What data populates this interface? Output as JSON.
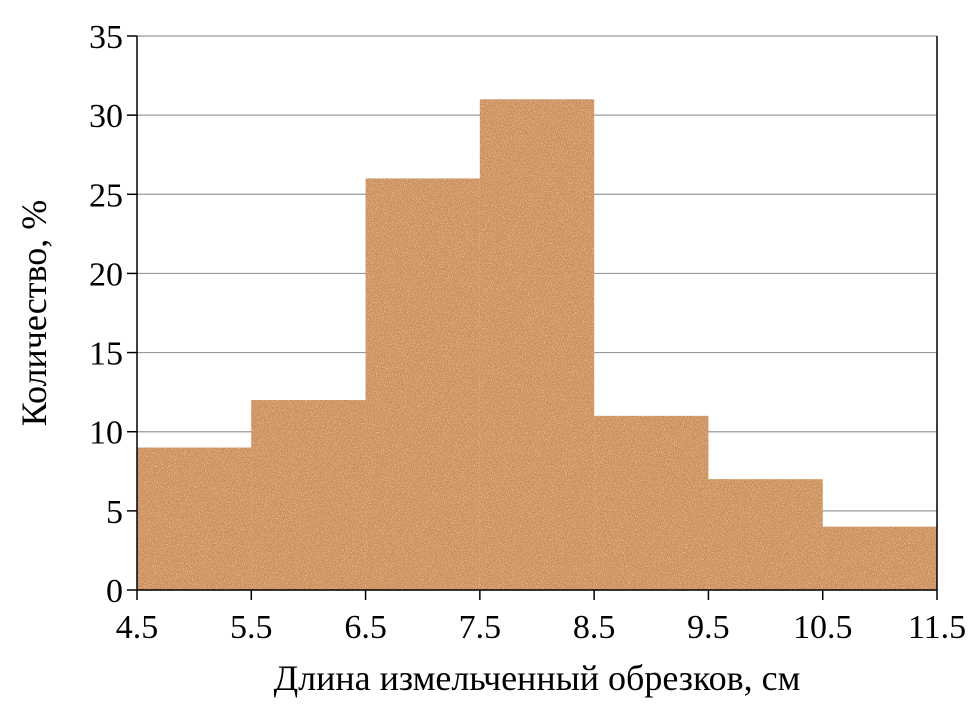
{
  "chart_data": {
    "type": "histogram",
    "xlabel": "Длина измельченный обрезков, см",
    "ylabel": "Количество, %",
    "bins": [
      4.5,
      5.5,
      6.5,
      7.5,
      8.5,
      9.5,
      10.5,
      11.5
    ],
    "values": [
      9,
      12,
      26,
      31,
      11,
      7,
      4
    ],
    "color": "#cf8a52",
    "xlim": [
      4.5,
      11.5
    ],
    "xticks": [
      4.5,
      5.5,
      6.5,
      7.5,
      8.5,
      9.5,
      10.5,
      11.5
    ],
    "ylim": [
      0,
      35
    ],
    "yticks": [
      0,
      5,
      10,
      15,
      20,
      25,
      30,
      35
    ],
    "grid": true
  }
}
